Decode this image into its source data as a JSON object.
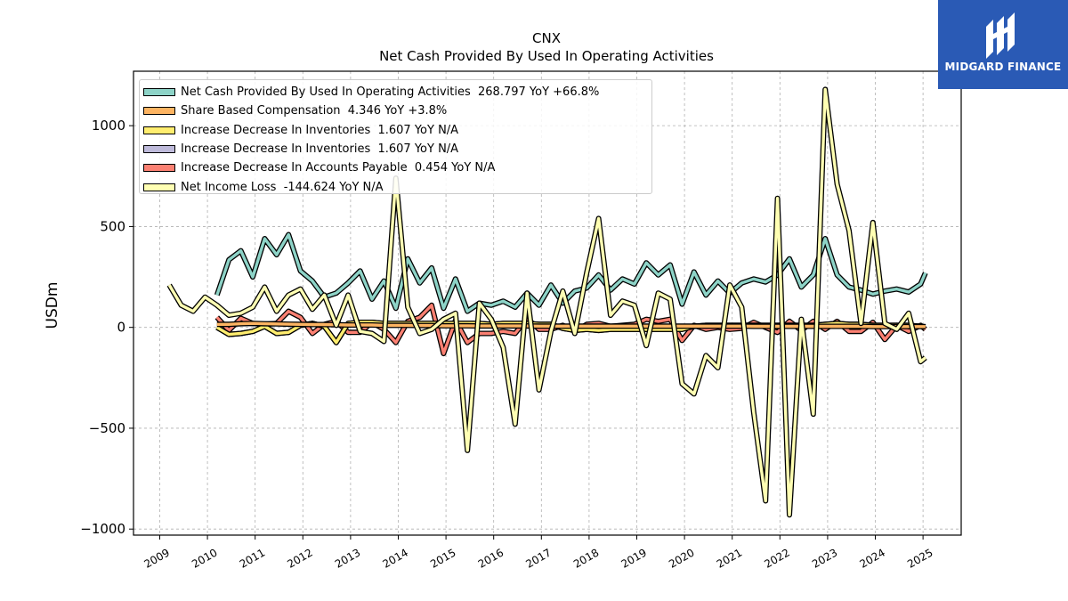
{
  "brand": {
    "name": "MIDGARD FINANCE",
    "logo_icon": "midgard-m-logo-icon",
    "color": "#2a5ab5"
  },
  "chart_data": {
    "type": "line",
    "title": "CNX",
    "subtitle": "Net Cash Provided By Used In Operating Activities",
    "xlabel": "",
    "ylabel": "USDm",
    "x_ticks": [
      "2009",
      "2010",
      "2011",
      "2012",
      "2013",
      "2014",
      "2015",
      "2016",
      "2017",
      "2018",
      "2019",
      "2020",
      "2021",
      "2022",
      "2023",
      "2024",
      "2025"
    ],
    "y_ticks": [
      "−1000",
      "−500",
      "0",
      "500",
      "1000"
    ],
    "y_tick_values": [
      -1000,
      -500,
      0,
      500,
      1000
    ],
    "xlim": [
      2008.45,
      2025.8
    ],
    "ylim": [
      -1030,
      1270
    ],
    "grid": true,
    "legend_position": "top-left",
    "series": [
      {
        "name": "Net Cash Provided By Used In Operating Activities",
        "legend": "Net Cash Provided By Used In Operating Activities  268.797 YoY +66.8%",
        "color": "#8dd3c7",
        "x": [
          2010.2,
          2010.45,
          2010.7,
          2010.95,
          2011.2,
          2011.45,
          2011.7,
          2011.95,
          2012.2,
          2012.45,
          2012.7,
          2012.95,
          2013.2,
          2013.45,
          2013.7,
          2013.95,
          2014.2,
          2014.45,
          2014.7,
          2014.95,
          2015.2,
          2015.45,
          2015.7,
          2015.95,
          2016.2,
          2016.45,
          2016.7,
          2016.95,
          2017.2,
          2017.45,
          2017.7,
          2017.95,
          2018.2,
          2018.45,
          2018.7,
          2018.95,
          2019.2,
          2019.45,
          2019.7,
          2019.95,
          2020.2,
          2020.45,
          2020.7,
          2020.95,
          2021.2,
          2021.45,
          2021.7,
          2021.95,
          2022.2,
          2022.45,
          2022.7,
          2022.95,
          2023.2,
          2023.45,
          2023.7,
          2023.95,
          2024.2,
          2024.45,
          2024.7,
          2024.95,
          2025.05
        ],
        "values": [
          160,
          335,
          380,
          250,
          440,
          360,
          460,
          280,
          230,
          150,
          170,
          220,
          280,
          140,
          230,
          95,
          340,
          220,
          295,
          95,
          240,
          80,
          120,
          110,
          130,
          100,
          170,
          110,
          210,
          120,
          180,
          195,
          260,
          185,
          240,
          215,
          320,
          260,
          310,
          115,
          275,
          160,
          230,
          170,
          220,
          240,
          225,
          260,
          340,
          200,
          260,
          440,
          260,
          200,
          185,
          165,
          180,
          190,
          175,
          215,
          270
        ]
      },
      {
        "name": "Share Based Compensation",
        "legend": "Share Based Compensation  4.346 YoY +3.8%",
        "color": "#fdb462",
        "x": [
          2010.2,
          2010.45,
          2010.7,
          2010.95,
          2011.2,
          2011.45,
          2011.7,
          2011.95,
          2012.2,
          2012.45,
          2012.7,
          2012.95,
          2013.2,
          2013.45,
          2013.7,
          2013.95,
          2014.2,
          2014.45,
          2014.7,
          2014.95,
          2015.2,
          2015.45,
          2015.7,
          2015.95,
          2016.2,
          2016.45,
          2016.7,
          2016.95,
          2017.2,
          2017.45,
          2017.7,
          2017.95,
          2018.2,
          2018.45,
          2018.7,
          2018.95,
          2019.2,
          2019.45,
          2019.7,
          2019.95,
          2020.2,
          2020.45,
          2020.7,
          2020.95,
          2021.2,
          2021.45,
          2021.7,
          2021.95,
          2022.2,
          2022.45,
          2022.7,
          2022.95,
          2023.2,
          2023.45,
          2023.7,
          2023.95,
          2024.2,
          2024.45,
          2024.7,
          2024.95,
          2025.05
        ],
        "values": [
          15,
          15,
          18,
          20,
          18,
          17,
          16,
          15,
          14,
          14,
          13,
          12,
          12,
          12,
          10,
          10,
          10,
          9,
          9,
          8,
          8,
          8,
          7,
          7,
          7,
          7,
          7,
          6,
          6,
          6,
          6,
          6,
          6,
          6,
          6,
          6,
          6,
          6,
          6,
          6,
          6,
          6,
          6,
          6,
          6,
          5,
          5,
          5,
          5,
          5,
          5,
          5,
          5,
          5,
          5,
          4,
          4,
          4,
          4,
          4,
          4
        ]
      },
      {
        "name": "Increase Decrease In Inventories",
        "legend": "Increase Decrease In Inventories  1.607 YoY N/A",
        "color": "#ffed6f",
        "x": [
          2010.2,
          2010.45,
          2010.7,
          2010.95,
          2011.2,
          2011.45,
          2011.7,
          2011.95,
          2012.2,
          2012.45,
          2012.7,
          2012.95,
          2013.2,
          2013.45,
          2013.7,
          2013.95,
          2014.2,
          2014.45,
          2014.7,
          2014.95,
          2015.2,
          2015.45,
          2015.7,
          2015.95,
          2016.2,
          2016.45,
          2016.7,
          2016.95,
          2017.2,
          2017.45,
          2017.7,
          2017.95,
          2018.2,
          2018.45,
          2018.7,
          2018.95,
          2019.2,
          2019.45,
          2019.7,
          2019.95,
          2020.2,
          2020.45,
          2020.7,
          2020.95,
          2021.2,
          2021.45,
          2021.7,
          2021.95,
          2022.2,
          2022.45,
          2022.7,
          2022.95,
          2023.2,
          2023.45,
          2023.7,
          2023.95,
          2024.2,
          2024.45,
          2024.7,
          2024.95,
          2025.05
        ],
        "values": [
          0,
          -35,
          -30,
          -20,
          5,
          -30,
          -25,
          10,
          20,
          5,
          -75,
          20,
          25,
          25,
          20,
          20,
          20,
          20,
          20,
          20,
          20,
          20,
          20,
          15,
          20,
          20,
          20,
          15,
          15,
          -5,
          -15,
          -10,
          -15,
          -10,
          -10,
          -10,
          -10,
          -10,
          -10,
          -10,
          5,
          10,
          10,
          10,
          10,
          10,
          10,
          10,
          10,
          10,
          10,
          15,
          20,
          15,
          15,
          10,
          10,
          10,
          10,
          5,
          2
        ]
      },
      {
        "name": "Increase Decrease In Inventories",
        "legend": "Increase Decrease In Inventories  1.607 YoY N/A",
        "color": "#bebada",
        "x": [
          2010.2,
          2010.45,
          2010.7,
          2010.95,
          2011.2,
          2011.45,
          2011.7,
          2011.95,
          2012.2,
          2012.45,
          2012.7,
          2012.95,
          2013.2,
          2013.45,
          2013.7,
          2013.95,
          2014.2,
          2014.45,
          2014.7,
          2014.95,
          2015.2,
          2015.45,
          2015.7,
          2015.95,
          2016.2,
          2016.45,
          2016.7,
          2016.95,
          2017.2,
          2017.45,
          2017.7,
          2017.95,
          2018.2,
          2018.45,
          2018.7,
          2018.95,
          2019.2,
          2019.45,
          2019.7,
          2019.95,
          2020.2,
          2020.45,
          2020.7,
          2020.95,
          2021.2,
          2021.45,
          2021.7,
          2021.95,
          2022.2,
          2022.45,
          2022.7,
          2022.95,
          2023.2,
          2023.45,
          2023.7,
          2023.95,
          2024.2,
          2024.45,
          2024.7,
          2024.95,
          2025.05
        ],
        "values": [
          0,
          -35,
          -30,
          -20,
          5,
          -30,
          -25,
          10,
          20,
          5,
          -75,
          20,
          25,
          25,
          20,
          20,
          20,
          20,
          20,
          20,
          20,
          20,
          20,
          15,
          20,
          20,
          20,
          15,
          15,
          -5,
          -15,
          -10,
          -15,
          -10,
          -10,
          -10,
          -10,
          -10,
          -10,
          -10,
          5,
          10,
          10,
          10,
          10,
          10,
          10,
          10,
          10,
          10,
          10,
          15,
          20,
          15,
          15,
          10,
          10,
          10,
          10,
          5,
          2
        ]
      },
      {
        "name": "Increase Decrease In Accounts Payable",
        "legend": "Increase Decrease In Accounts Payable  0.454 YoY N/A",
        "color": "#fb8072",
        "x": [
          2010.2,
          2010.45,
          2010.7,
          2010.95,
          2011.2,
          2011.45,
          2011.7,
          2011.95,
          2012.2,
          2012.45,
          2012.7,
          2012.95,
          2013.2,
          2013.45,
          2013.7,
          2013.95,
          2014.2,
          2014.45,
          2014.7,
          2014.95,
          2015.2,
          2015.45,
          2015.7,
          2015.95,
          2016.2,
          2016.45,
          2016.7,
          2016.95,
          2017.2,
          2017.45,
          2017.7,
          2017.95,
          2018.2,
          2018.45,
          2018.7,
          2018.95,
          2019.2,
          2019.45,
          2019.7,
          2019.95,
          2020.2,
          2020.45,
          2020.7,
          2020.95,
          2021.2,
          2021.45,
          2021.7,
          2021.95,
          2022.2,
          2022.45,
          2022.7,
          2022.95,
          2023.2,
          2023.45,
          2023.7,
          2023.95,
          2024.2,
          2024.45,
          2024.7,
          2024.95,
          2025.05
        ],
        "values": [
          50,
          -15,
          45,
          20,
          15,
          20,
          80,
          50,
          -30,
          15,
          30,
          -25,
          -25,
          25,
          -10,
          -75,
          30,
          50,
          110,
          -130,
          35,
          -75,
          -30,
          -30,
          -20,
          -30,
          45,
          -10,
          -10,
          10,
          -20,
          15,
          20,
          5,
          10,
          15,
          40,
          30,
          40,
          -65,
          10,
          -10,
          0,
          -10,
          -5,
          25,
          0,
          -25,
          30,
          -15,
          30,
          -10,
          30,
          -20,
          -20,
          25,
          -60,
          10,
          -20,
          10,
          -10
        ]
      },
      {
        "name": "Net Income Loss",
        "legend": "Net Income Loss  -144.624 YoY N/A",
        "color": "#ffffb3",
        "x": [
          2009.2,
          2009.45,
          2009.7,
          2009.95,
          2010.2,
          2010.45,
          2010.7,
          2010.95,
          2011.2,
          2011.45,
          2011.7,
          2011.95,
          2012.2,
          2012.45,
          2012.7,
          2012.95,
          2013.2,
          2013.45,
          2013.7,
          2013.95,
          2014.2,
          2014.45,
          2014.7,
          2014.95,
          2015.2,
          2015.45,
          2015.7,
          2015.95,
          2016.2,
          2016.45,
          2016.7,
          2016.95,
          2017.2,
          2017.45,
          2017.7,
          2017.95,
          2018.2,
          2018.45,
          2018.7,
          2018.95,
          2019.2,
          2019.45,
          2019.7,
          2019.95,
          2020.2,
          2020.45,
          2020.7,
          2020.95,
          2021.2,
          2021.45,
          2021.7,
          2021.95,
          2022.2,
          2022.45,
          2022.7,
          2022.95,
          2023.2,
          2023.45,
          2023.7,
          2023.95,
          2024.2,
          2024.45,
          2024.7,
          2024.95,
          2025.05
        ],
        "values": [
          210,
          110,
          80,
          150,
          110,
          60,
          70,
          100,
          200,
          80,
          160,
          190,
          90,
          160,
          10,
          160,
          -20,
          -30,
          -70,
          740,
          100,
          -30,
          -10,
          40,
          70,
          -610,
          120,
          40,
          -100,
          -480,
          170,
          -310,
          -20,
          180,
          -30,
          270,
          540,
          60,
          130,
          110,
          -90,
          170,
          140,
          -280,
          -330,
          -140,
          -200,
          210,
          100,
          -420,
          -860,
          640,
          -930,
          40,
          -430,
          1180,
          710,
          480,
          20,
          520,
          20,
          -10,
          70,
          -170,
          -150
        ]
      }
    ]
  }
}
